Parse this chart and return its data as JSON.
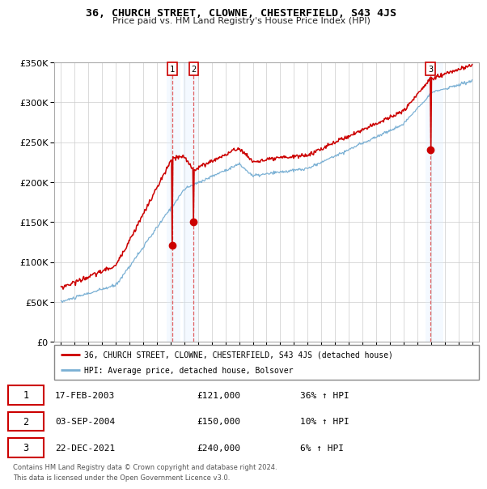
{
  "title": "36, CHURCH STREET, CLOWNE, CHESTERFIELD, S43 4JS",
  "subtitle": "Price paid vs. HM Land Registry's House Price Index (HPI)",
  "red_label": "36, CHURCH STREET, CLOWNE, CHESTERFIELD, S43 4JS (detached house)",
  "blue_label": "HPI: Average price, detached house, Bolsover",
  "transactions": [
    {
      "num": 1,
      "date": "17-FEB-2003",
      "price": "£121,000",
      "change": "36% ↑ HPI",
      "year": 2003.12,
      "price_val": 121000
    },
    {
      "num": 2,
      "date": "03-SEP-2004",
      "price": "£150,000",
      "change": "10% ↑ HPI",
      "year": 2004.67,
      "price_val": 150000
    },
    {
      "num": 3,
      "date": "22-DEC-2021",
      "price": "£240,000",
      "change": "6% ↑ HPI",
      "year": 2021.97,
      "price_val": 240000
    }
  ],
  "footnote1": "Contains HM Land Registry data © Crown copyright and database right 2024.",
  "footnote2": "This data is licensed under the Open Government Licence v3.0.",
  "ylim": [
    0,
    350000
  ],
  "yticks": [
    0,
    50000,
    100000,
    150000,
    200000,
    250000,
    300000,
    350000
  ],
  "xmin": 1994.5,
  "xmax": 2025.5,
  "background_color": "#ffffff",
  "grid_color": "#cccccc",
  "red_color": "#cc0000",
  "blue_color": "#7ab0d4",
  "vline_color": "#dd4444",
  "highlight_bg": "#ddeeff",
  "label_box_color": "#cc0000",
  "seed_blue": 10,
  "seed_red": 20,
  "noise_blue": 1800,
  "noise_red": 2200
}
